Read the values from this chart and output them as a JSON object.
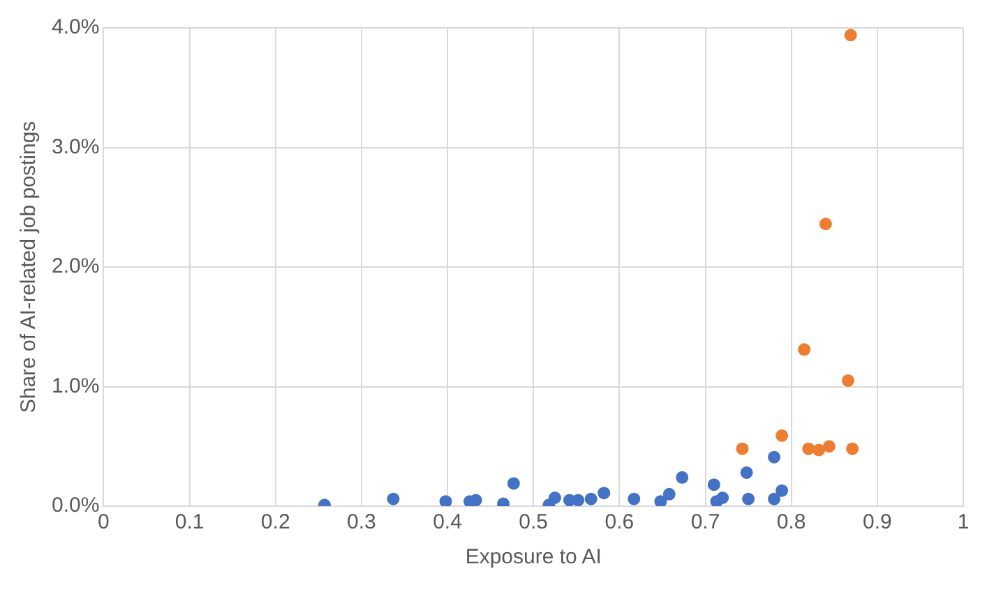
{
  "chart_data": {
    "type": "scatter",
    "xlabel": "Exposure to AI",
    "ylabel": "Share of AI-related job postings",
    "xlim": [
      0,
      1
    ],
    "xticks": [
      0,
      0.1,
      0.2,
      0.3,
      0.4,
      0.5,
      0.6,
      0.7,
      0.8,
      0.9,
      1
    ],
    "ylim": [
      0,
      4
    ],
    "yticks": [
      {
        "value": 0,
        "label": "0.0%"
      },
      {
        "value": 1,
        "label": "1.0%"
      },
      {
        "value": 2,
        "label": "2.0%"
      },
      {
        "value": 3,
        "label": "3.0%"
      },
      {
        "value": 4,
        "label": "4.0%"
      }
    ],
    "grid": true,
    "legend": false,
    "marker": "circle",
    "series": [
      {
        "color": "#4472c4",
        "x": [
          0.257,
          0.337,
          0.398,
          0.426,
          0.433,
          0.465,
          0.477,
          0.518,
          0.525,
          0.542,
          0.552,
          0.567,
          0.582,
          0.617,
          0.648,
          0.658,
          0.673,
          0.71,
          0.713,
          0.72,
          0.748,
          0.75,
          0.78,
          0.78,
          0.789
        ],
        "values": [
          0.01,
          0.06,
          0.04,
          0.04,
          0.05,
          0.02,
          0.19,
          0.01,
          0.07,
          0.05,
          0.05,
          0.06,
          0.11,
          0.06,
          0.04,
          0.1,
          0.24,
          0.18,
          0.04,
          0.07,
          0.28,
          0.06,
          0.41,
          0.06,
          0.13
        ]
      },
      {
        "color": "#ed7d31",
        "x": [
          0.743,
          0.789,
          0.815,
          0.82,
          0.832,
          0.844,
          0.84,
          0.866,
          0.869,
          0.871
        ],
        "values": [
          0.48,
          0.59,
          1.31,
          0.48,
          0.47,
          0.5,
          2.36,
          1.05,
          3.94,
          0.48
        ]
      }
    ]
  }
}
